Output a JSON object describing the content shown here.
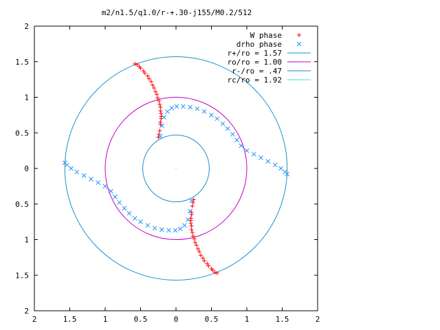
{
  "chart_data": {
    "type": "scatter",
    "title": "m2/n1.5/q1.0/r-+.30-j155/M0.2/512",
    "xlim": [
      -2,
      2
    ],
    "ylim": [
      -2,
      2
    ],
    "x_ticks": [
      -2,
      -1.5,
      -1,
      -0.5,
      0,
      0.5,
      1,
      1.5,
      2
    ],
    "y_ticks": [
      -2,
      -1.5,
      -1,
      -0.5,
      0,
      0.5,
      1,
      1.5,
      2
    ],
    "x_tick_labels": [
      "2",
      "1.5",
      "1",
      "0.5",
      "0",
      "0.5",
      "1",
      "1.5",
      "2"
    ],
    "y_tick_labels": [
      "2",
      "1.5",
      "1",
      "0.5",
      "0",
      "0.5",
      "1",
      "1.5",
      "2"
    ],
    "grid": false,
    "legend_position": "top-right",
    "legend": [
      {
        "label": "W phase",
        "color": "#ff0000",
        "marker": "plus"
      },
      {
        "label": "drho phase",
        "color": "#1e90ff",
        "marker": "cross"
      },
      {
        "label": "r+/ro = 1.57",
        "color": "#1e90c8",
        "marker": "line"
      },
      {
        "label": "ro/ro = 1.00",
        "color": "#c000c0",
        "marker": "line"
      },
      {
        "label": "r-/ro = .47",
        "color": "#1e90c8",
        "marker": "line"
      },
      {
        "label": "rc/ro = 1.92",
        "color": "#40e0d0",
        "marker": "line"
      }
    ],
    "circles": [
      {
        "name": "r+/ro = 1.57",
        "r": 1.57
      },
      {
        "name": "ro/ro = 1.00",
        "r": 1.0
      },
      {
        "name": "r-/ro = .47",
        "r": 0.47
      }
    ],
    "series": [
      {
        "name": "W phase",
        "x": [
          -0.58,
          -0.52,
          -0.46,
          -0.4,
          -0.35,
          -0.31,
          -0.27,
          -0.24,
          -0.22,
          -0.21,
          -0.21,
          -0.22,
          -0.23,
          -0.25,
          -0.55,
          -0.5,
          -0.44,
          -0.38,
          -0.33,
          -0.29,
          -0.26,
          -0.23,
          -0.22,
          -0.21,
          -0.22,
          -0.24,
          0.58,
          0.52,
          0.46,
          0.4,
          0.35,
          0.31,
          0.27,
          0.24,
          0.22,
          0.21,
          0.21,
          0.22,
          0.23,
          0.25,
          0.55,
          0.5,
          0.44,
          0.38,
          0.33,
          0.29,
          0.26,
          0.23,
          0.22,
          0.21,
          0.22,
          0.24
        ],
        "y": [
          1.47,
          1.43,
          1.37,
          1.3,
          1.22,
          1.13,
          1.04,
          0.95,
          0.86,
          0.77,
          0.7,
          0.62,
          0.53,
          0.44,
          1.46,
          1.41,
          1.34,
          1.26,
          1.17,
          1.08,
          0.99,
          0.9,
          0.81,
          0.73,
          0.65,
          0.48,
          -1.47,
          -1.43,
          -1.37,
          -1.3,
          -1.22,
          -1.13,
          -1.04,
          -0.95,
          -0.86,
          -0.77,
          -0.7,
          -0.62,
          -0.53,
          -0.44,
          -1.46,
          -1.41,
          -1.34,
          -1.26,
          -1.17,
          -1.08,
          -0.99,
          -0.9,
          -0.81,
          -0.73,
          -0.65,
          -0.48
        ]
      },
      {
        "name": "drho phase",
        "x": [
          -0.22,
          -0.2,
          -0.17,
          -0.12,
          -0.06,
          0.01,
          0.1,
          0.2,
          0.3,
          0.4,
          0.5,
          0.58,
          0.66,
          0.73,
          0.8,
          0.86,
          0.92,
          1.0,
          1.1,
          1.2,
          1.3,
          1.4,
          1.48,
          1.54,
          1.57,
          0.22,
          0.2,
          0.17,
          0.12,
          0.06,
          -0.01,
          -0.1,
          -0.2,
          -0.3,
          -0.4,
          -0.5,
          -0.58,
          -0.66,
          -0.73,
          -0.8,
          -0.86,
          -0.92,
          -1.0,
          -1.1,
          -1.2,
          -1.3,
          -1.4,
          -1.48,
          -1.54,
          -1.57
        ],
        "y": [
          0.45,
          0.6,
          0.72,
          0.8,
          0.85,
          0.87,
          0.87,
          0.86,
          0.84,
          0.8,
          0.75,
          0.7,
          0.63,
          0.56,
          0.48,
          0.4,
          0.32,
          0.25,
          0.2,
          0.15,
          0.1,
          0.05,
          0.0,
          -0.05,
          -0.08,
          -0.45,
          -0.6,
          -0.72,
          -0.8,
          -0.85,
          -0.87,
          -0.87,
          -0.86,
          -0.84,
          -0.8,
          -0.75,
          -0.7,
          -0.63,
          -0.56,
          -0.48,
          -0.4,
          -0.32,
          -0.25,
          -0.2,
          -0.15,
          -0.1,
          -0.05,
          0.0,
          0.05,
          0.08
        ]
      }
    ]
  }
}
